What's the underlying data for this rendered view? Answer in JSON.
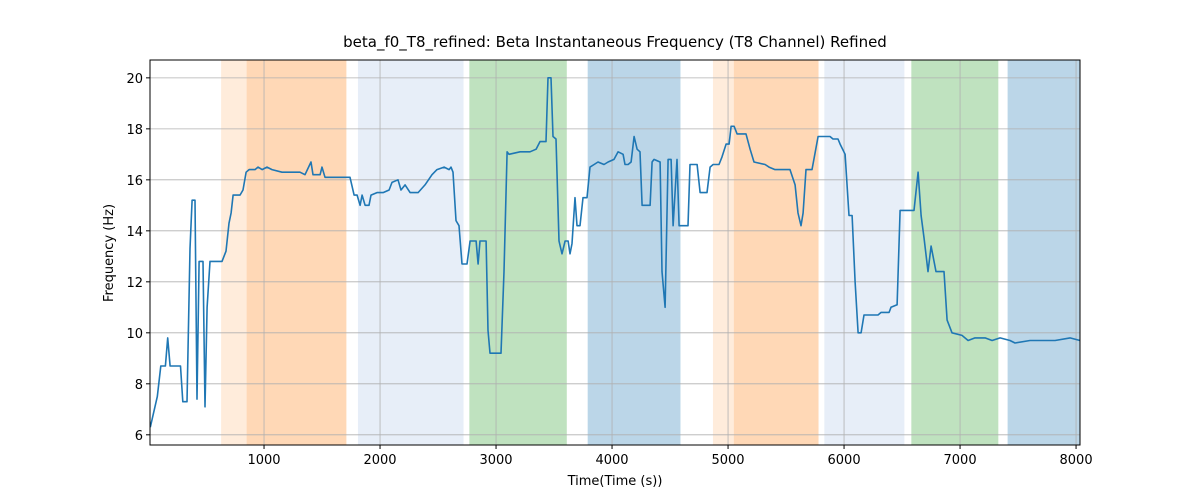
{
  "chart_data": {
    "type": "line",
    "title": "beta_f0_T8_refined: Beta Instantaneous Frequency (T8 Channel) Refined",
    "xlabel": "Time(Time (s))",
    "ylabel": "Frequency (Hz)",
    "xlim": [
      17,
      8034
    ],
    "ylim": [
      5.6,
      20.7
    ],
    "xticks": [
      1000,
      2000,
      3000,
      4000,
      5000,
      6000,
      7000,
      8000
    ],
    "yticks": [
      6,
      8,
      10,
      12,
      14,
      16,
      18,
      20
    ],
    "grid": true,
    "spans": [
      {
        "start": 630,
        "end": 850,
        "color": "#ff7f0e",
        "alpha": 0.15
      },
      {
        "start": 850,
        "end": 1710,
        "color": "#ff7f0e",
        "alpha": 0.3
      },
      {
        "start": 1810,
        "end": 2720,
        "color": "#aec7e8",
        "alpha": 0.3
      },
      {
        "start": 2770,
        "end": 3610,
        "color": "#2ca02c",
        "alpha": 0.3
      },
      {
        "start": 3790,
        "end": 4590,
        "color": "#1f77b4",
        "alpha": 0.3
      },
      {
        "start": 4870,
        "end": 5050,
        "color": "#ff7f0e",
        "alpha": 0.15
      },
      {
        "start": 5050,
        "end": 5780,
        "color": "#ff7f0e",
        "alpha": 0.3
      },
      {
        "start": 5830,
        "end": 6520,
        "color": "#aec7e8",
        "alpha": 0.3
      },
      {
        "start": 6580,
        "end": 7330,
        "color": "#2ca02c",
        "alpha": 0.3
      },
      {
        "start": 7410,
        "end": 8034,
        "color": "#1f77b4",
        "alpha": 0.3
      }
    ],
    "series": [
      {
        "color": "#1f77b4",
        "x": [
          20,
          80,
          110,
          150,
          170,
          190,
          280,
          300,
          336,
          362,
          380,
          405,
          422,
          440,
          474,
          491,
          509,
          534,
          638,
          672,
          698,
          716,
          733,
          793,
          819,
          845,
          871,
          922,
          948,
          983,
          1026,
          1069,
          1155,
          1310,
          1353,
          1405,
          1422,
          1483,
          1500,
          1526,
          1655,
          1741,
          1776,
          1802,
          1828,
          1845,
          1871,
          1905,
          1922,
          1974,
          2026,
          2078,
          2103,
          2155,
          2181,
          2216,
          2259,
          2328,
          2388,
          2448,
          2491,
          2552,
          2595,
          2612,
          2629,
          2655,
          2681,
          2707,
          2750,
          2776,
          2828,
          2845,
          2862,
          2914,
          2931,
          2948,
          3043,
          3069,
          3095,
          3112,
          3207,
          3293,
          3345,
          3379,
          3431,
          3448,
          3474,
          3491,
          3517,
          3543,
          3569,
          3595,
          3621,
          3638,
          3655,
          3681,
          3698,
          3724,
          3750,
          3784,
          3810,
          3845,
          3879,
          3931,
          3966,
          4017,
          4052,
          4095,
          4112,
          4138,
          4164,
          4190,
          4216,
          4241,
          4259,
          4328,
          4345,
          4362,
          4414,
          4431,
          4457,
          4483,
          4509,
          4526,
          4560,
          4578,
          4655,
          4672,
          4733,
          4759,
          4819,
          4845,
          4871,
          4922,
          4948,
          4983,
          5009,
          5026,
          5052,
          5078,
          5155,
          5190,
          5224,
          5319,
          5353,
          5405,
          5534,
          5578,
          5603,
          5629,
          5647,
          5672,
          5724,
          5776,
          5879,
          5905,
          5948,
          5966,
          6009,
          6043,
          6069,
          6095,
          6121,
          6147,
          6172,
          6293,
          6319,
          6388,
          6405,
          6457,
          6483,
          6603,
          6638,
          6664,
          6690,
          6724,
          6750,
          6793,
          6862,
          6888,
          6931,
          7017,
          7069,
          7129,
          7216,
          7276,
          7345,
          7431,
          7474,
          7603,
          7733,
          7819,
          7948,
          8034
        ],
        "values": [
          6.3,
          7.5,
          8.7,
          8.7,
          9.8,
          8.7,
          8.7,
          7.3,
          7.3,
          13.3,
          15.2,
          15.2,
          7.4,
          12.8,
          12.8,
          7.1,
          11.0,
          12.8,
          12.8,
          13.2,
          14.3,
          14.7,
          15.4,
          15.4,
          15.6,
          16.3,
          16.4,
          16.4,
          16.5,
          16.4,
          16.5,
          16.4,
          16.3,
          16.3,
          16.2,
          16.7,
          16.2,
          16.2,
          16.5,
          16.1,
          16.1,
          16.1,
          15.4,
          15.4,
          15.0,
          15.4,
          15.0,
          15.0,
          15.4,
          15.5,
          15.5,
          15.6,
          15.9,
          16.0,
          15.6,
          15.8,
          15.5,
          15.5,
          15.8,
          16.2,
          16.4,
          16.5,
          16.4,
          16.5,
          16.3,
          14.4,
          14.2,
          12.7,
          12.7,
          13.6,
          13.6,
          12.7,
          13.6,
          13.6,
          10.1,
          9.2,
          9.2,
          12.4,
          17.1,
          17.0,
          17.1,
          17.1,
          17.2,
          17.5,
          17.5,
          20.0,
          20.0,
          17.7,
          17.6,
          13.6,
          13.1,
          13.6,
          13.6,
          13.1,
          13.5,
          15.3,
          14.2,
          14.2,
          15.3,
          15.3,
          16.5,
          16.6,
          16.7,
          16.6,
          16.7,
          16.8,
          17.1,
          17.0,
          16.6,
          16.6,
          16.7,
          17.7,
          17.2,
          17.1,
          15.0,
          15.0,
          16.7,
          16.8,
          16.7,
          12.4,
          11.0,
          16.8,
          16.8,
          14.2,
          16.8,
          14.2,
          14.2,
          16.6,
          16.6,
          15.5,
          15.5,
          16.5,
          16.6,
          16.6,
          16.9,
          17.4,
          17.4,
          18.1,
          18.1,
          17.8,
          17.8,
          17.2,
          16.7,
          16.6,
          16.5,
          16.4,
          16.4,
          15.8,
          14.7,
          14.2,
          14.7,
          16.4,
          16.4,
          17.7,
          17.7,
          17.6,
          17.6,
          17.4,
          17.0,
          14.6,
          14.6,
          12.0,
          10.0,
          10.0,
          10.7,
          10.7,
          10.8,
          10.8,
          11.0,
          11.1,
          14.8,
          14.8,
          16.3,
          14.6,
          13.7,
          12.4,
          13.4,
          12.4,
          12.4,
          10.5,
          10.0,
          9.9,
          9.7,
          9.8,
          9.8,
          9.7,
          9.8,
          9.7,
          9.6,
          9.7,
          9.7,
          9.7,
          9.8,
          9.7
        ]
      }
    ]
  }
}
